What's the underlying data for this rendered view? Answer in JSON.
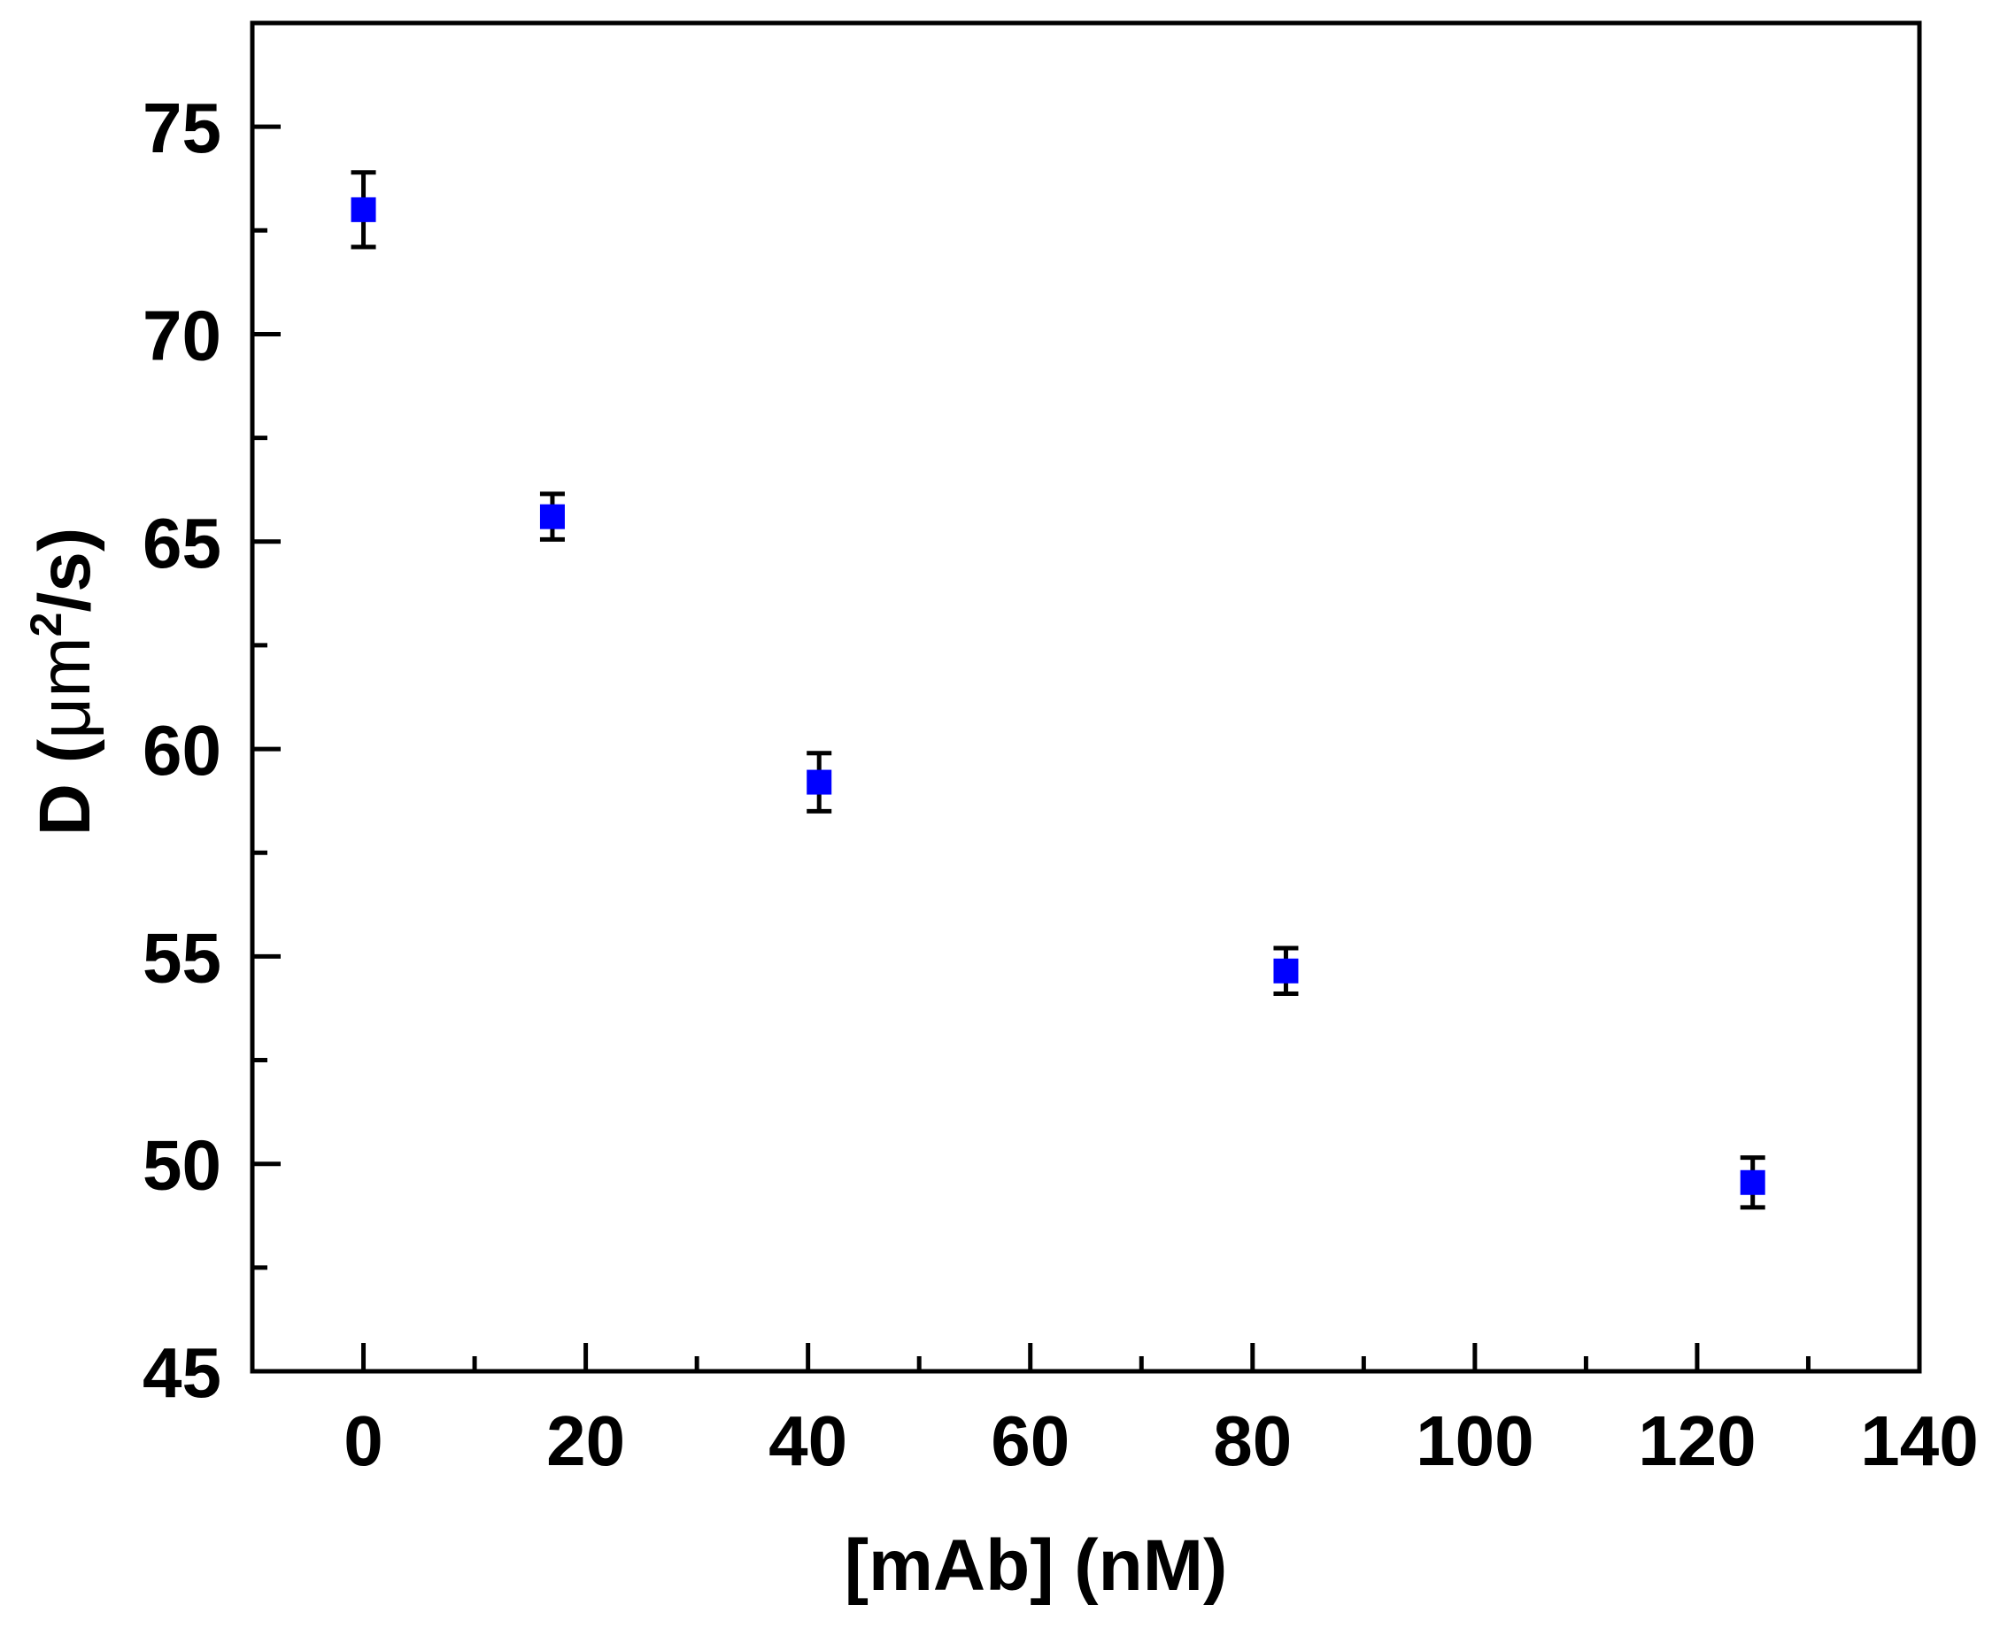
{
  "chart_data": {
    "type": "scatter",
    "title": "",
    "xlabel": "[mAb] (nM)",
    "ylabel_main": "D (",
    "ylabel_unit": "μm",
    "ylabel_sup": "2",
    "ylabel_tail": "/s)",
    "xlim": [
      -10,
      140
    ],
    "ylim": [
      45,
      77.5
    ],
    "x_ticks": [
      0,
      20,
      40,
      60,
      80,
      100,
      120,
      140
    ],
    "x_minor_ticks": [
      10,
      30,
      50,
      70,
      90,
      110,
      130
    ],
    "y_ticks": [
      45,
      50,
      55,
      60,
      65,
      70,
      75
    ],
    "y_minor_ticks": [
      47.5,
      52.5,
      57.5,
      62.5,
      67.5,
      72.5
    ],
    "grid": false,
    "legend": "none",
    "marker_color": "#0000ff",
    "error_bar_color": "#000000",
    "points": [
      {
        "x": 0,
        "y": 73.0,
        "err": 0.9
      },
      {
        "x": 17,
        "y": 65.6,
        "err": 0.55
      },
      {
        "x": 41,
        "y": 59.2,
        "err": 0.7
      },
      {
        "x": 83,
        "y": 54.65,
        "err": 0.55
      },
      {
        "x": 125,
        "y": 49.55,
        "err": 0.6
      }
    ]
  }
}
